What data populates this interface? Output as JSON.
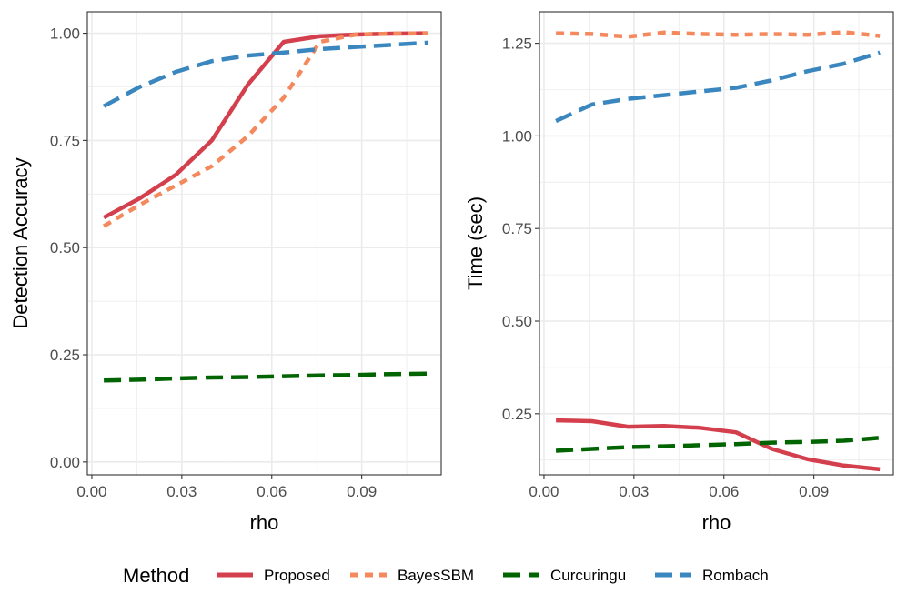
{
  "chart_data": [
    {
      "type": "line",
      "xlabel": "rho",
      "ylabel": "Detection Accuracy",
      "xlim": [
        -0.0015,
        0.1165
      ],
      "ylim": [
        -0.03,
        1.05
      ],
      "xticks": [
        "0.00",
        "0.03",
        "0.06",
        "0.09"
      ],
      "yticks": [
        "0.00",
        "0.25",
        "0.50",
        "0.75",
        "1.00"
      ],
      "grid": true,
      "x": [
        0.004,
        0.016,
        0.028,
        0.04,
        0.052,
        0.064,
        0.076,
        0.088,
        0.1,
        0.112
      ],
      "series": [
        {
          "name": "Proposed",
          "values": [
            0.57,
            0.615,
            0.67,
            0.75,
            0.88,
            0.98,
            0.993,
            0.997,
            0.999,
            1.0
          ]
        },
        {
          "name": "BayesSBM",
          "values": [
            0.55,
            0.6,
            0.645,
            0.69,
            0.76,
            0.85,
            0.98,
            0.997,
            0.999,
            1.0
          ]
        },
        {
          "name": "Curcuringu",
          "values": [
            0.19,
            0.192,
            0.195,
            0.197,
            0.198,
            0.2,
            0.202,
            0.203,
            0.205,
            0.206
          ]
        },
        {
          "name": "Rombach",
          "values": [
            0.83,
            0.875,
            0.91,
            0.935,
            0.948,
            0.955,
            0.963,
            0.968,
            0.973,
            0.978
          ]
        }
      ]
    },
    {
      "type": "line",
      "xlabel": "rho",
      "ylabel": "Time (sec)",
      "xlim": [
        -0.0015,
        0.1165
      ],
      "ylim": [
        0.085,
        1.335
      ],
      "xticks": [
        "0.00",
        "0.03",
        "0.06",
        "0.09"
      ],
      "yticks": [
        "0.25",
        "0.50",
        "0.75",
        "1.00",
        "1.25"
      ],
      "grid": true,
      "x": [
        0.004,
        0.016,
        0.028,
        0.04,
        0.052,
        0.064,
        0.076,
        0.088,
        0.1,
        0.112
      ],
      "series": [
        {
          "name": "Proposed",
          "values": [
            0.232,
            0.23,
            0.215,
            0.217,
            0.212,
            0.2,
            0.155,
            0.127,
            0.11,
            0.1
          ]
        },
        {
          "name": "BayesSBM",
          "values": [
            1.277,
            1.275,
            1.268,
            1.279,
            1.275,
            1.273,
            1.275,
            1.273,
            1.28,
            1.27
          ]
        },
        {
          "name": "Curcuringu",
          "values": [
            0.15,
            0.155,
            0.16,
            0.162,
            0.165,
            0.168,
            0.172,
            0.174,
            0.177,
            0.185
          ]
        },
        {
          "name": "Rombach",
          "values": [
            1.04,
            1.085,
            1.1,
            1.11,
            1.12,
            1.13,
            1.15,
            1.175,
            1.195,
            1.225
          ]
        }
      ]
    }
  ],
  "legend": {
    "title": "Method",
    "position": "bottom",
    "entries": [
      "Proposed",
      "BayesSBM",
      "Curcuringu",
      "Rombach"
    ]
  },
  "colors": {
    "Proposed": "#d43f4d",
    "BayesSBM": "#f4895d",
    "Curcuringu": "#006400",
    "Rombach": "#3a87c0",
    "grid": "#ebebeb",
    "panel_border": "#333333",
    "tick_text": "#4d4d4d"
  },
  "line_styles": {
    "Proposed": "solid",
    "BayesSBM": "dotted",
    "Curcuringu": "dashed",
    "Rombach": "dashed"
  }
}
